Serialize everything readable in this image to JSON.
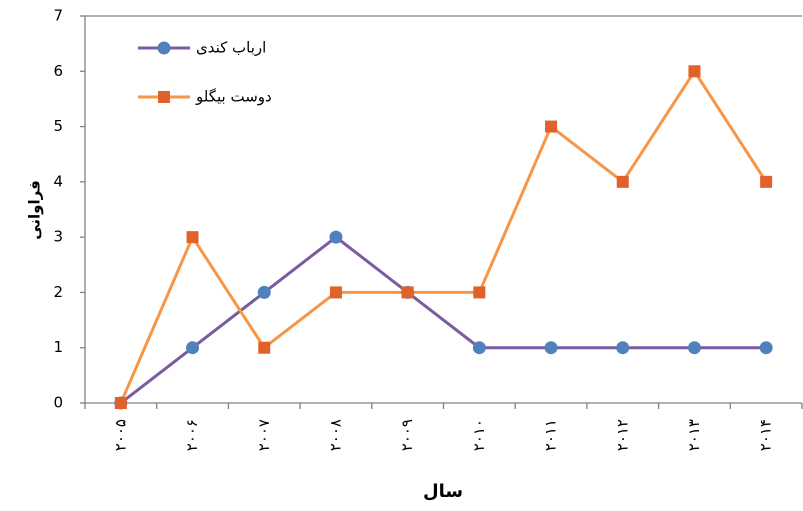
{
  "chart_data": {
    "type": "line",
    "x_label": "سال",
    "y_label": "فراوانی",
    "categories": [
      "۲۰۰۵",
      "۲۰۰۶",
      "۲۰۰۷",
      "۲۰۰۸",
      "۲۰۰۹",
      "۲۰۱۰",
      "۲۰۱۱",
      "۲۰۱۲",
      "۲۰۱۳",
      "۲۰۱۴"
    ],
    "series": [
      {
        "name": "ارباب کندی",
        "color": "#7a5aa0",
        "marker": "circle",
        "marker_color": "#4f81bd",
        "values": [
          0,
          1,
          2,
          3,
          2,
          1,
          1,
          1,
          1,
          1
        ]
      },
      {
        "name": "دوست بیگلو",
        "color": "#f79646",
        "marker": "square",
        "marker_color": "#e0622a",
        "values": [
          0,
          3,
          1,
          2,
          2,
          2,
          5,
          4,
          6,
          4
        ]
      }
    ],
    "ylim": [
      0,
      7
    ],
    "yticks": [
      0,
      1,
      2,
      3,
      4,
      5,
      6,
      7
    ],
    "legend": "top-left"
  }
}
